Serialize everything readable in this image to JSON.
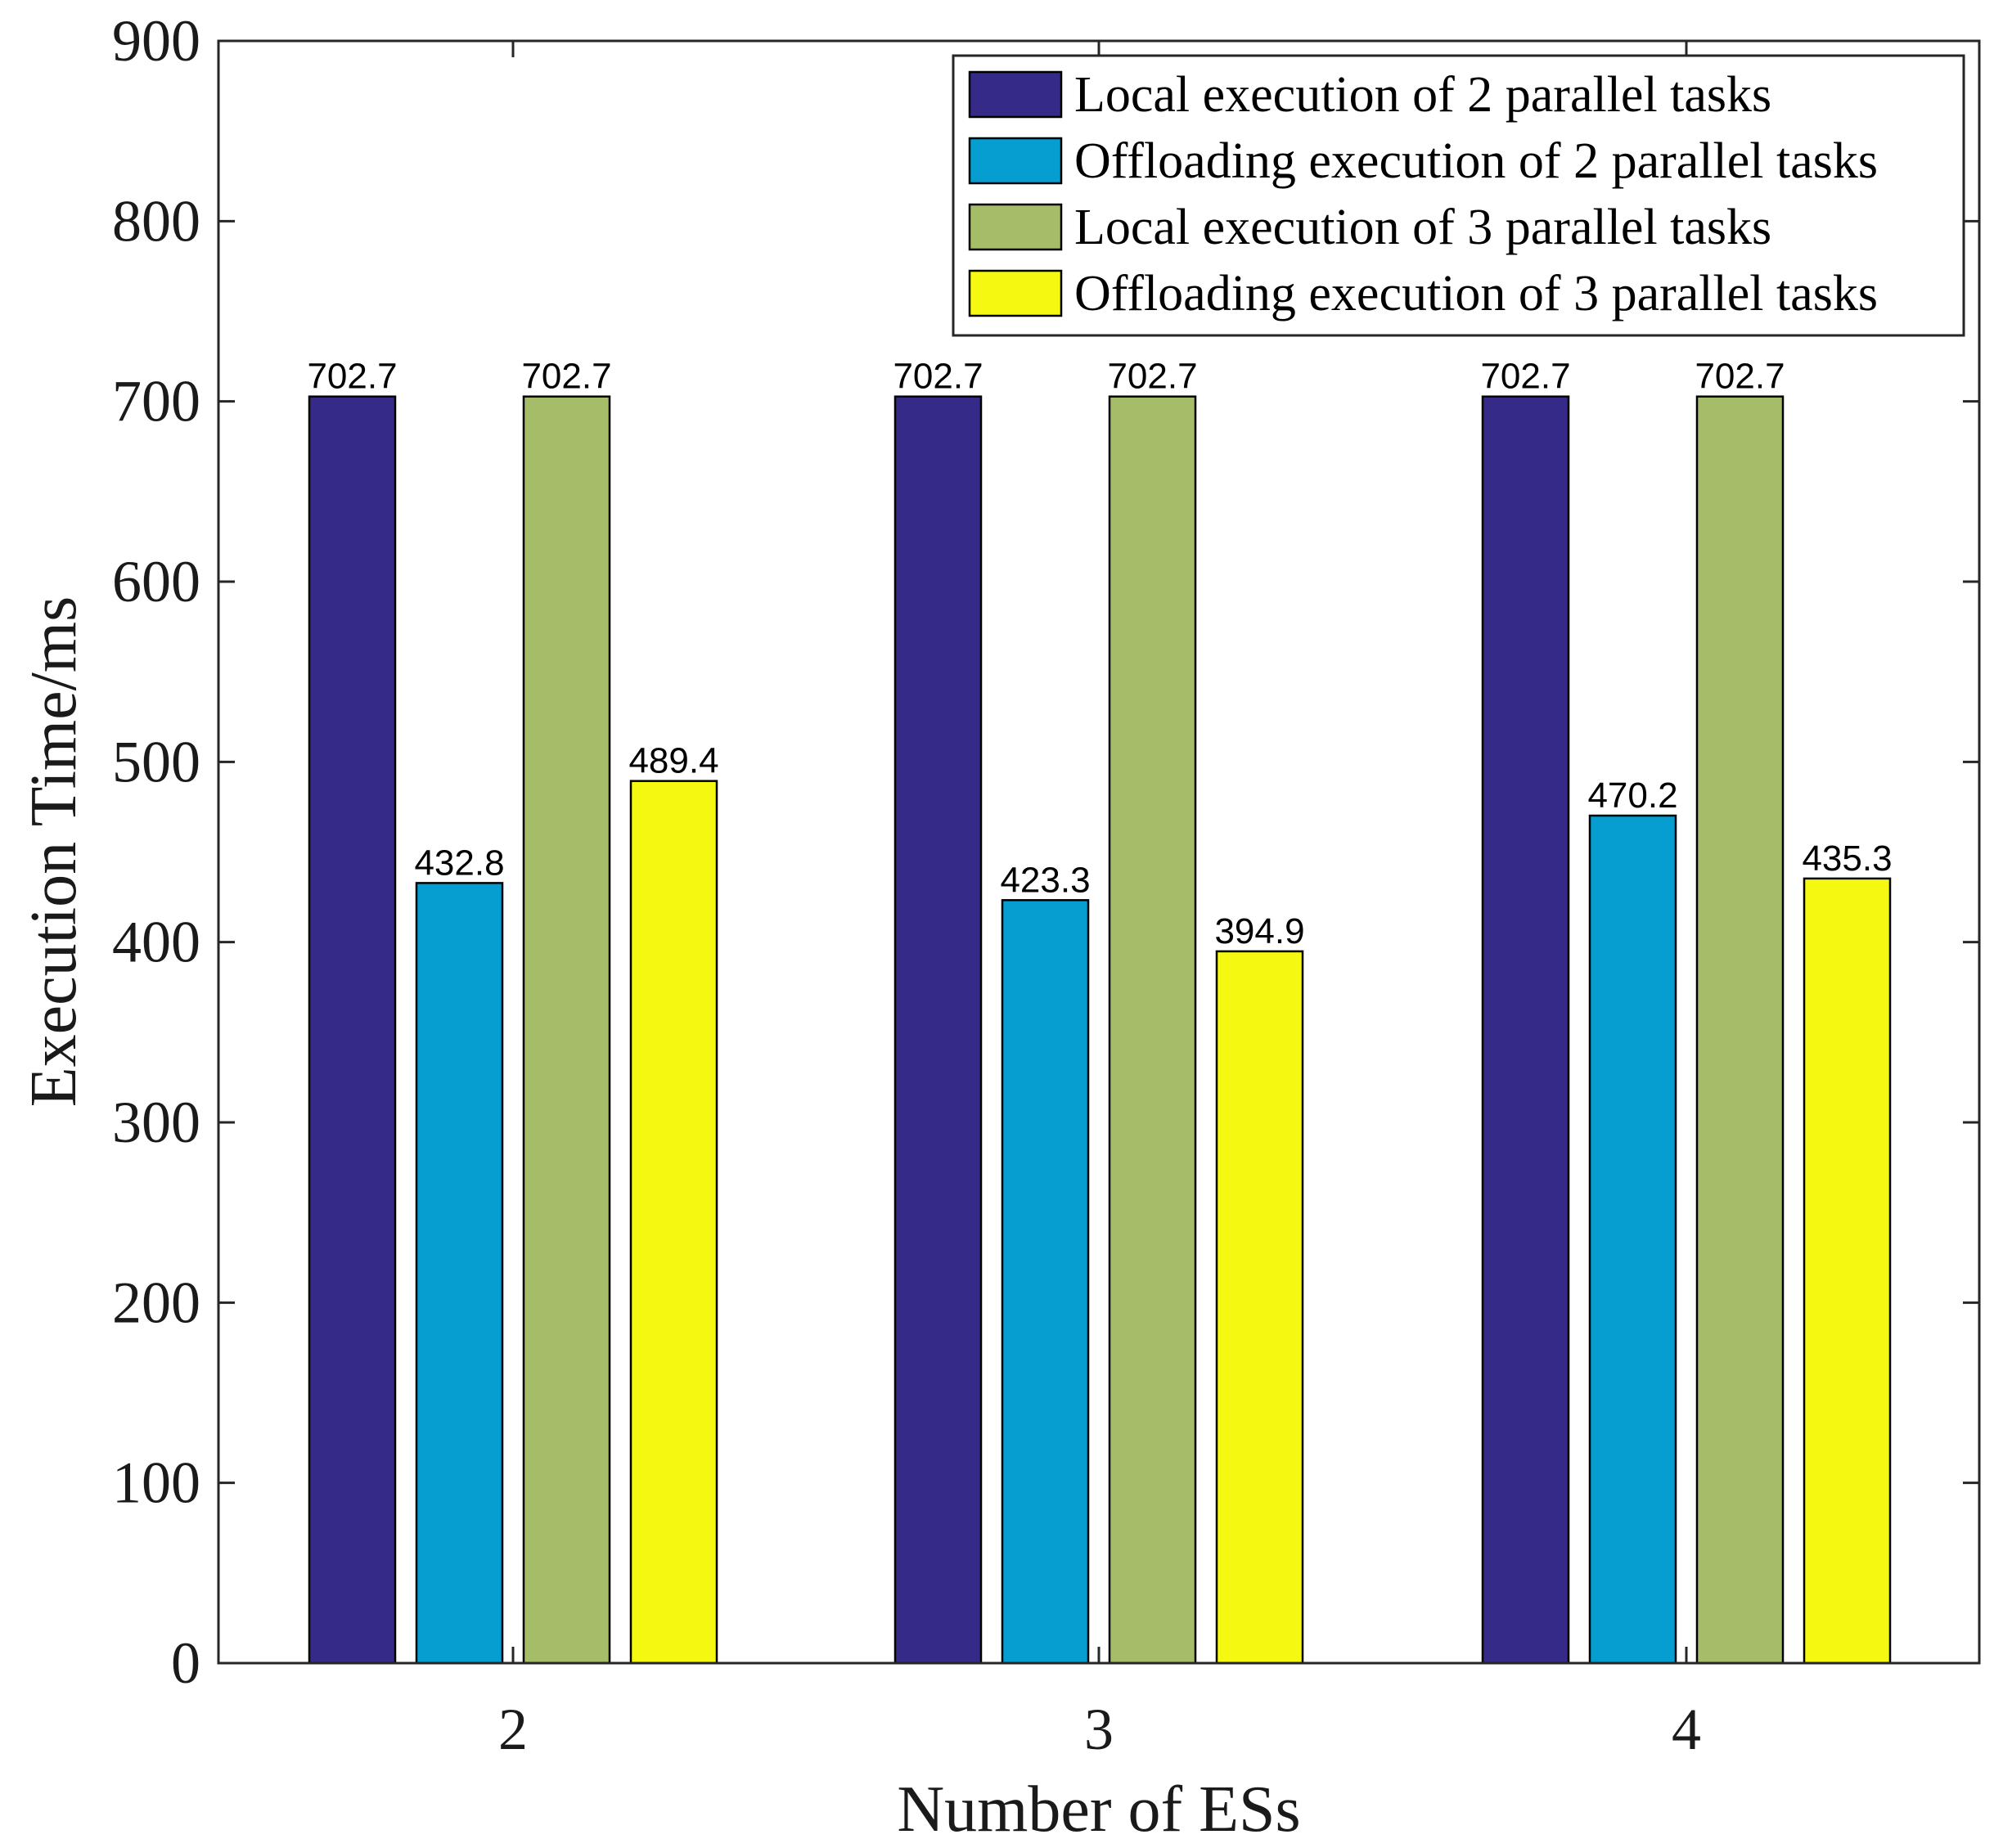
{
  "chart_data": {
    "type": "bar",
    "xlabel": "Number of ESs",
    "ylabel": "Execution Time/ms",
    "categories": [
      "2",
      "3",
      "4"
    ],
    "ylim": [
      0,
      900
    ],
    "yticks": [
      0,
      100,
      200,
      300,
      400,
      500,
      600,
      700,
      800,
      900
    ],
    "grid": false,
    "legend_position": "top-right",
    "series": [
      {
        "name": "Local execution of 2 parallel tasks",
        "color": "#352a87",
        "values": [
          702.7,
          702.7,
          702.7
        ]
      },
      {
        "name": "Offloading execution of 2 parallel tasks",
        "color": "#069dd1",
        "values": [
          432.8,
          423.3,
          470.2
        ]
      },
      {
        "name": "Local execution of 3 parallel tasks",
        "color": "#a5bd68",
        "values": [
          702.7,
          702.7,
          702.7
        ]
      },
      {
        "name": "Offloading execution of 3 parallel tasks",
        "color": "#f5f811",
        "values": [
          489.4,
          394.9,
          435.3
        ]
      }
    ]
  }
}
